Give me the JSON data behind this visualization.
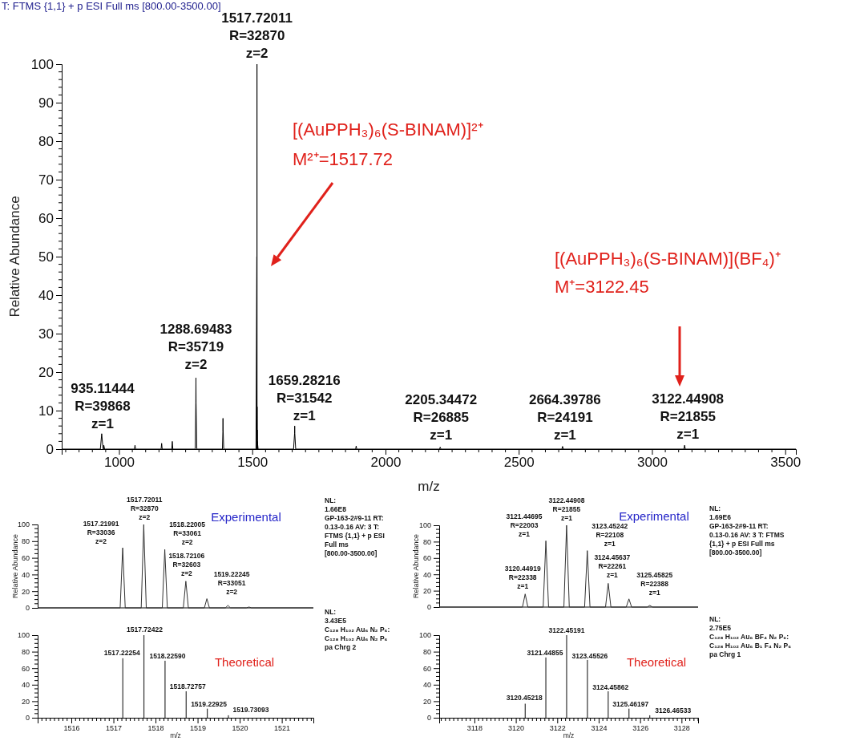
{
  "chart_data": [
    {
      "type": "line",
      "title": "T: FTMS {1,1}  + p ESI Full ms [800.00-3500.00]",
      "xlabel": "m/z",
      "ylabel": "Relative Abundance",
      "xlim": [
        785,
        3540
      ],
      "ylim": [
        0,
        100
      ],
      "xticks": [
        1000,
        1500,
        2000,
        2500,
        3000,
        3500
      ],
      "yticks": [
        0,
        10,
        20,
        30,
        40,
        50,
        60,
        70,
        80,
        90,
        100
      ],
      "series": [
        {
          "color": "#000000",
          "x": [
            785,
            930,
            935.1,
            940,
            942,
            943,
            946,
            948,
            1058,
            1060,
            1062,
            1158,
            1160,
            1162,
            1198,
            1200,
            1202,
            1286,
            1288.2,
            1288.7,
            1289.2,
            1292,
            1388,
            1389.7,
            1390.2,
            1390.7,
            1393,
            1514,
            1517.2,
            1517.5,
            1517.7,
            1518,
            1518.2,
            1518.5,
            1518.7,
            1519,
            1519.2,
            1522,
            1655,
            1658.8,
            1659.3,
            1659.8,
            1663,
            1888,
            1890,
            1892,
            2203,
            2205.3,
            2208,
            2662,
            2664.4,
            2667,
            3120,
            3122.4,
            3125,
            3540
          ],
          "values": [
            0,
            0,
            4,
            0,
            0,
            1,
            0,
            0,
            0,
            1,
            0,
            0,
            1.5,
            0,
            0,
            2,
            0,
            0,
            12,
            18.5,
            12,
            0,
            0,
            4.5,
            8,
            5,
            0,
            0,
            50,
            0,
            100,
            0,
            11,
            0,
            5,
            0,
            2,
            0,
            0,
            4,
            6,
            4,
            0,
            0,
            0.8,
            0,
            0,
            0.5,
            0,
            0,
            0.7,
            0,
            0,
            1,
            0,
            0
          ]
        }
      ],
      "annotations": [
        {
          "text": "935.11444\nR=39868\nz=1",
          "x": 935.11,
          "y": 4
        },
        {
          "text": "1288.69483\nR=35719\nz=2",
          "x": 1288.69,
          "y": 18.5
        },
        {
          "text": "1517.72011\nR=32870\nz=2",
          "x": 1517.72,
          "y": 100
        },
        {
          "text": "1659.28216\nR=31542\nz=1",
          "x": 1659.28,
          "y": 6
        },
        {
          "text": "2205.34472\nR=26885\nz=1",
          "x": 2205.34,
          "y": 0.5
        },
        {
          "text": "2664.39786\nR=24191\nz=1",
          "x": 2664.4,
          "y": 0.7
        },
        {
          "text": "3122.44908\nR=21855\nz=1",
          "x": 3122.45,
          "y": 1
        },
        "[(AuPPH₃)₆(S-BINAM)]²⁺\nM²⁺=1517.72",
        "[(AuPPH₃)₆(S-BINAM)](BF₄)⁺\nM⁺=3122.45"
      ]
    },
    {
      "type": "line",
      "title": "Experimental",
      "ylabel": "Relative Abundance",
      "xlim": [
        1515.2,
        1521.75
      ],
      "ylim": [
        0,
        100
      ],
      "yticks": [
        0,
        20,
        40,
        60,
        80,
        100
      ],
      "tick_labels": "y",
      "series": [
        {
          "color": "#333333",
          "x": [
            1515.2,
            1517.16,
            1517.22,
            1517.28,
            1517.66,
            1517.72,
            1517.78,
            1518.16,
            1518.22,
            1518.28,
            1518.66,
            1518.72,
            1518.78,
            1519.16,
            1519.22,
            1519.28,
            1519.66,
            1519.72,
            1519.78,
            1520.16,
            1520.22,
            1520.28,
            1521.75
          ],
          "values": [
            0,
            0,
            72,
            0,
            0,
            100,
            0,
            0,
            70,
            0,
            0,
            32,
            0,
            0,
            11,
            0,
            0,
            3,
            0,
            0,
            1,
            0,
            0
          ]
        }
      ],
      "annotations": [
        {
          "text": "1517.21991\nR=33036\nz=2",
          "x": 1517.22,
          "y": 72
        },
        {
          "text": "1517.72011\nR=32870\nz=2",
          "x": 1517.72,
          "y": 100
        },
        {
          "text": "1518.22005\nR=33061\nz=2",
          "x": 1518.22,
          "y": 70
        },
        {
          "text": "1518.72106\nR=32603\nz=2",
          "x": 1518.72,
          "y": 32
        },
        {
          "text": "1519.22245\nR=33051\nz=2",
          "x": 1519.22,
          "y": 11
        },
        "NL:\n1.66E8\nGP-163-2#9-11  RT:\n0.13-0.16  AV: 3 T:\nFTMS {1,1}  + p ESI\nFull ms\n[800.00-3500.00]"
      ]
    },
    {
      "type": "line",
      "title": "Experimental",
      "ylabel": "Relative Abundance",
      "xlim": [
        3116.3,
        3128.8
      ],
      "ylim": [
        0,
        100
      ],
      "yticks": [
        0,
        20,
        40,
        60,
        80,
        100
      ],
      "tick_labels": "y",
      "series": [
        {
          "color": "#333333",
          "x": [
            3116.3,
            3120.32,
            3120.45,
            3120.58,
            3121.32,
            3121.45,
            3121.58,
            3122.32,
            3122.45,
            3122.58,
            3123.32,
            3123.45,
            3123.58,
            3124.33,
            3124.46,
            3124.59,
            3125.33,
            3125.46,
            3125.59,
            3126.34,
            3126.47,
            3126.6,
            3128.8
          ],
          "values": [
            0,
            0,
            16,
            0,
            0,
            81,
            0,
            0,
            100,
            0,
            0,
            69,
            0,
            0,
            29,
            0,
            0,
            10,
            0,
            0,
            2,
            0,
            0
          ]
        }
      ],
      "annotations": [
        {
          "text": "3120.44919\nR=22338\nz=1",
          "x": 3120.45,
          "y": 16
        },
        {
          "text": "3121.44695\nR=22003\nz=1",
          "x": 3121.45,
          "y": 81
        },
        {
          "text": "3122.44908\nR=21855\nz=1",
          "x": 3122.45,
          "y": 100
        },
        {
          "text": "3123.45242\nR=22108\nz=1",
          "x": 3123.45,
          "y": 69
        },
        {
          "text": "3124.45637\nR=22261\nz=1",
          "x": 3124.46,
          "y": 29
        },
        {
          "text": "3125.45825\nR=22388\nz=1",
          "x": 3125.46,
          "y": 10
        },
        "NL:\n1.69E6\nGP-163-2#9-11  RT:\n0.13-0.16  AV: 3 T: FTMS\n{1,1}  + p ESI Full ms\n[800.00-3500.00]"
      ]
    },
    {
      "type": "bar",
      "title": "Theoretical",
      "xlabel": "m/z",
      "xlim": [
        1515.2,
        1521.75
      ],
      "ylim": [
        0,
        100
      ],
      "xticks": [
        1516,
        1517,
        1518,
        1519,
        1520,
        1521
      ],
      "yticks": [
        0,
        20,
        40,
        60,
        80,
        100
      ],
      "series": [
        {
          "color": "#333333",
          "x": [
            1517.22254,
            1517.72422,
            1518.2259,
            1518.72757,
            1519.22925,
            1519.73093
          ],
          "values": [
            72,
            100,
            69,
            32,
            11,
            3
          ]
        }
      ],
      "annotations": [
        {
          "text": "1517.22254",
          "x": 1517.22254,
          "y": 72
        },
        {
          "text": "1517.72422",
          "x": 1517.72422,
          "y": 100
        },
        {
          "text": "1518.22590",
          "x": 1518.2259,
          "y": 69
        },
        {
          "text": "1518.72757",
          "x": 1518.72757,
          "y": 32
        },
        {
          "text": "1519.22925",
          "x": 1519.22925,
          "y": 11
        },
        {
          "text": "1519.73093",
          "x": 1519.73093,
          "y": 3
        },
        "NL:\n3.43E5\nC₁₂₈ H₁₀₂ Au₆ N₂ P₆:\nC₁₂₈ H₁₀₂ Au₆ N₂ P₆\npa Chrg 2"
      ]
    },
    {
      "type": "bar",
      "title": "Theoretical",
      "xlabel": "m/z",
      "xlim": [
        3116.3,
        3128.8
      ],
      "ylim": [
        0,
        100
      ],
      "xticks": [
        3118,
        3120,
        3122,
        3124,
        3126,
        3128
      ],
      "yticks": [
        0,
        20,
        40,
        60,
        80,
        100
      ],
      "series": [
        {
          "color": "#333333",
          "x": [
            3120.45218,
            3121.44855,
            3122.45191,
            3123.45526,
            3124.45862,
            3125.46197,
            3126.46533
          ],
          "values": [
            17,
            73,
            100,
            70,
            32,
            11,
            3
          ]
        }
      ],
      "annotations": [
        {
          "text": "3120.45218",
          "x": 3120.45218,
          "y": 17
        },
        {
          "text": "3121.44855",
          "x": 3121.44855,
          "y": 73
        },
        {
          "text": "3122.45191",
          "x": 3122.45191,
          "y": 100
        },
        {
          "text": "3123.45526",
          "x": 3123.45526,
          "y": 70
        },
        {
          "text": "3124.45862",
          "x": 3124.45862,
          "y": 32
        },
        {
          "text": "3125.46197",
          "x": 3125.46197,
          "y": 11
        },
        {
          "text": "3126.46533",
          "x": 3126.46533,
          "y": 3
        },
        "NL:\n2.75E5\nC₁₂₈ H₁₀₂ Au₆ BF₄ N₂ P₆:\nC₁₂₈ H₁₀₂ Au₆ B₁ F₄ N₂ P₆\npa Chrg 1"
      ]
    }
  ]
}
